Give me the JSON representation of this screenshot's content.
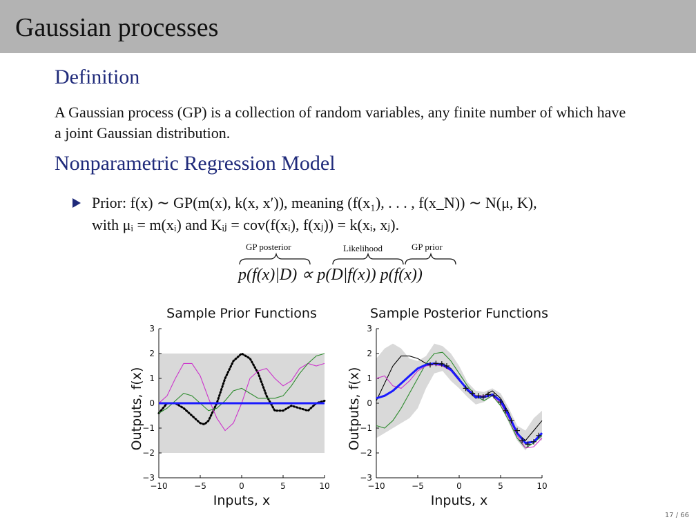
{
  "header": {
    "title": "Gaussian processes"
  },
  "definition": {
    "heading": "Definition",
    "text": "A Gaussian process (GP) is a collection of random variables, any finite number of which have a joint Gaussian distribution."
  },
  "model": {
    "heading": "Nonparametric Regression Model",
    "bullet_line1": "Prior: f(x) ∼ GP(m(x), k(x, x′)), meaning (f(x₁), . . . , f(x_N)) ∼ N(μ, K),",
    "bullet_line2": "with μᵢ = m(xᵢ) and Kᵢⱼ = cov(f(xᵢ), f(xⱼ)) = k(xᵢ, xⱼ).",
    "brace_labels": {
      "posterior": "GP posterior",
      "likelihood": "Likelihood",
      "prior": "GP prior"
    },
    "equation": "p(f(x)|D) ∝ p(D|f(x)) p(f(x))"
  },
  "page": {
    "number": "17 / 66"
  },
  "colors": {
    "heading": "#1f2a7a",
    "header_bg": "#b3b3b3",
    "mean": "#1a1aff",
    "band": "#d9d9d9"
  },
  "chart_data": [
    {
      "type": "line",
      "title": "Sample Prior Functions",
      "xlabel": "Inputs, x",
      "ylabel": "Outputs, f(x)",
      "xlim": [
        -10,
        10
      ],
      "ylim": [
        -3,
        3
      ],
      "xticks": [
        "−10",
        "−5",
        "0",
        "5",
        "10"
      ],
      "yticks": [
        "−3",
        "−2",
        "−1",
        "0",
        "1",
        "2",
        "3"
      ],
      "band": {
        "x": [
          -10,
          10
        ],
        "lower": [
          -2,
          -2
        ],
        "upper": [
          2,
          2
        ]
      },
      "mean": {
        "x": [
          -10,
          10
        ],
        "values": [
          0,
          0
        ]
      },
      "series": [
        {
          "color": "#000000",
          "style": "dotted",
          "x": [
            -10,
            -9,
            -8,
            -7,
            -6,
            -5,
            -4.5,
            -4,
            -3,
            -2,
            -1,
            0,
            1,
            2,
            3,
            4,
            5,
            6,
            7,
            8,
            9,
            10
          ],
          "values": [
            -0.4,
            0.0,
            0.0,
            -0.2,
            -0.5,
            -0.8,
            -0.85,
            -0.7,
            0.0,
            1.0,
            1.7,
            2.0,
            1.8,
            1.2,
            0.3,
            -0.3,
            -0.3,
            -0.1,
            -0.2,
            -0.3,
            0.0,
            0.1
          ]
        },
        {
          "color": "#cc33cc",
          "style": "solid",
          "x": [
            -10,
            -9,
            -8,
            -7,
            -6,
            -5,
            -4,
            -3,
            -2,
            -1,
            0,
            1,
            2,
            3,
            4,
            5,
            6,
            7,
            8,
            9,
            10
          ],
          "values": [
            0.0,
            0.3,
            1.0,
            1.6,
            1.6,
            1.1,
            0.2,
            -0.6,
            -1.1,
            -0.8,
            0.0,
            1.0,
            1.3,
            1.4,
            1.0,
            0.7,
            0.9,
            1.4,
            1.6,
            1.5,
            1.6
          ]
        },
        {
          "color": "#2e8b2e",
          "style": "solid",
          "x": [
            -10,
            -9,
            -8,
            -7,
            -6,
            -5,
            -4,
            -3,
            -2,
            -1,
            0,
            1,
            2,
            3,
            4,
            5,
            6,
            7,
            8,
            9,
            10
          ],
          "values": [
            -0.4,
            -0.2,
            0.1,
            0.4,
            0.3,
            0.0,
            -0.3,
            -0.2,
            0.1,
            0.5,
            0.6,
            0.4,
            0.2,
            0.2,
            0.2,
            0.3,
            0.7,
            1.2,
            1.6,
            1.9,
            2.0
          ]
        }
      ]
    },
    {
      "type": "line",
      "title": "Sample Posterior Functions",
      "xlabel": "Inputs, x",
      "ylabel": "Outputs, f(x)",
      "xlim": [
        -10,
        10
      ],
      "ylim": [
        -3,
        3
      ],
      "xticks": [
        "−10",
        "−5",
        "0",
        "5",
        "10"
      ],
      "yticks": [
        "−3",
        "−2",
        "−1",
        "0",
        "1",
        "2",
        "3"
      ],
      "band": {
        "x": [
          -10,
          -9,
          -8,
          -7,
          -6,
          -5,
          -4,
          -3,
          -2,
          -1,
          0,
          1,
          2,
          3,
          4,
          5,
          6,
          7,
          8,
          9,
          10
        ],
        "lower": [
          -1.4,
          -1.2,
          -1.0,
          -0.8,
          -0.6,
          -0.2,
          0.6,
          1.2,
          1.3,
          0.9,
          0.6,
          0.25,
          -0.05,
          0.05,
          0.3,
          -0.1,
          -0.8,
          -1.5,
          -1.9,
          -1.4,
          -1.5
        ],
        "upper": [
          1.8,
          2.2,
          2.4,
          2.2,
          1.8,
          1.7,
          1.9,
          2.4,
          2.3,
          2.0,
          1.5,
          0.85,
          0.5,
          0.45,
          0.6,
          0.4,
          -0.2,
          -0.9,
          -1.1,
          -0.6,
          -0.3
        ]
      },
      "mean": {
        "x": [
          -10,
          -9,
          -8,
          -7,
          -6,
          -5,
          -4,
          -3,
          -2,
          -1,
          0,
          1,
          2,
          3,
          4,
          5,
          6,
          7,
          8,
          9,
          10
        ],
        "values": [
          0.2,
          0.3,
          0.5,
          0.8,
          1.1,
          1.4,
          1.55,
          1.6,
          1.55,
          1.35,
          0.95,
          0.55,
          0.25,
          0.25,
          0.35,
          0.1,
          -0.5,
          -1.2,
          -1.6,
          -1.55,
          -1.2
        ]
      },
      "series": [
        {
          "color": "#000000",
          "style": "solid",
          "x": [
            -10,
            -9,
            -8,
            -7,
            -6,
            -5,
            -4,
            -3,
            -2,
            -1,
            0,
            1,
            2,
            3,
            4,
            5,
            6,
            7,
            8,
            9,
            10
          ],
          "values": [
            0.1,
            0.8,
            1.5,
            1.9,
            1.9,
            1.8,
            1.6,
            1.6,
            1.6,
            1.4,
            1.0,
            0.5,
            0.2,
            0.3,
            0.5,
            0.2,
            -0.4,
            -1.2,
            -1.5,
            -1.1,
            -0.7
          ]
        },
        {
          "color": "#2e8b2e",
          "style": "solid",
          "x": [
            -10,
            -9,
            -8,
            -7,
            -6,
            -5,
            -4,
            -3,
            -2,
            -1,
            0,
            1,
            2,
            3,
            4,
            5,
            6,
            7,
            8,
            9,
            10
          ],
          "values": [
            -0.9,
            -1.0,
            -0.7,
            -0.2,
            0.4,
            1.0,
            1.6,
            2.0,
            2.05,
            1.7,
            1.2,
            0.7,
            0.3,
            0.1,
            0.3,
            -0.1,
            -0.7,
            -1.4,
            -1.8,
            -1.6,
            -1.3
          ]
        },
        {
          "color": "#cc33cc",
          "style": "solid",
          "x": [
            -10,
            -9,
            -8,
            -7,
            -6,
            -5,
            -4,
            -3,
            -2,
            -1,
            0,
            1,
            2,
            3,
            4,
            5,
            6,
            7,
            8,
            9,
            10
          ],
          "values": [
            1.0,
            1.1,
            0.7,
            0.6,
            0.9,
            1.3,
            1.5,
            1.55,
            1.5,
            1.3,
            0.9,
            0.6,
            0.3,
            0.3,
            0.3,
            0.0,
            -0.6,
            -1.3,
            -1.8,
            -1.75,
            -1.4
          ]
        }
      ],
      "observations": {
        "x": [
          -3.5,
          -2.8,
          -2.1,
          -1.5,
          0.8,
          1.6,
          2.3,
          2.9,
          3.5,
          4.2,
          5.0,
          5.6,
          6.3,
          7.0,
          7.6,
          8.3,
          9.0,
          9.6
        ],
        "y": [
          1.55,
          1.6,
          1.58,
          1.5,
          0.6,
          0.4,
          0.3,
          0.25,
          0.35,
          0.3,
          0.05,
          -0.3,
          -0.7,
          -1.1,
          -1.5,
          -1.65,
          -1.55,
          -1.3
        ]
      }
    }
  ]
}
